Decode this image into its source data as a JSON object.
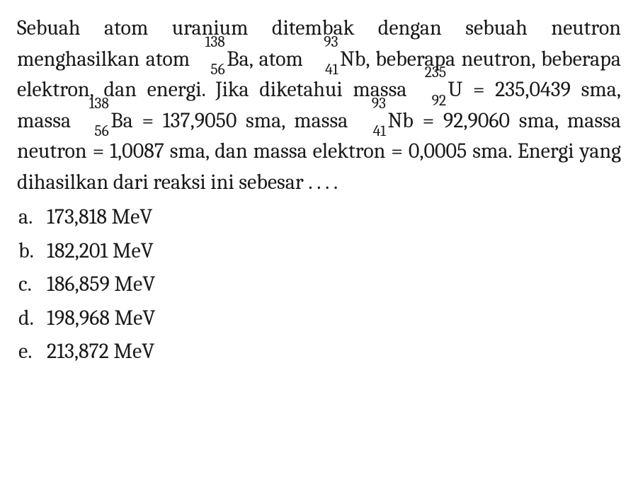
{
  "text_color": "#1a1a1a",
  "background_color": "#ffffff",
  "font_size_pt": 22,
  "line_height": 1.45,
  "question": {
    "p1a": "Sebuah atom uranium ditembak dengan sebuah neutron menghasilkan atom ",
    "ba": {
      "mass": "138",
      "atomic": "56",
      "sym": "Ba"
    },
    "p1b": ", atom ",
    "nb": {
      "mass": "93",
      "atomic": "41",
      "sym": "Nb"
    },
    "p1c": ", beberapa neutron, beberapa elektron, dan energi. Jika diketahui massa ",
    "u": {
      "mass": "235",
      "atomic": "92",
      "sym": "U"
    },
    "p1d": " = 235,0439 sma, massa ",
    "ba2": {
      "mass": "138",
      "atomic": "56",
      "sym": "Ba"
    },
    "p1e": " = 137,9050 sma, massa ",
    "nb2": {
      "mass": "93",
      "atomic": "41",
      "sym": "Nb"
    },
    "p1f": " = 92,9060 sma, massa neutron = 1,0087 sma, dan massa elektron = 0,0005 sma. Energi yang dihasilkan dari reaksi ini sebesar . . . ."
  },
  "options": {
    "a": {
      "letter": "a.",
      "text": "173,818 MeV"
    },
    "b": {
      "letter": "b.",
      "text": "182,201 MeV"
    },
    "c": {
      "letter": "c.",
      "text": "186,859 MeV"
    },
    "d": {
      "letter": "d.",
      "text": "198,968 MeV"
    },
    "e": {
      "letter": "e.",
      "text": "213,872 MeV"
    }
  }
}
